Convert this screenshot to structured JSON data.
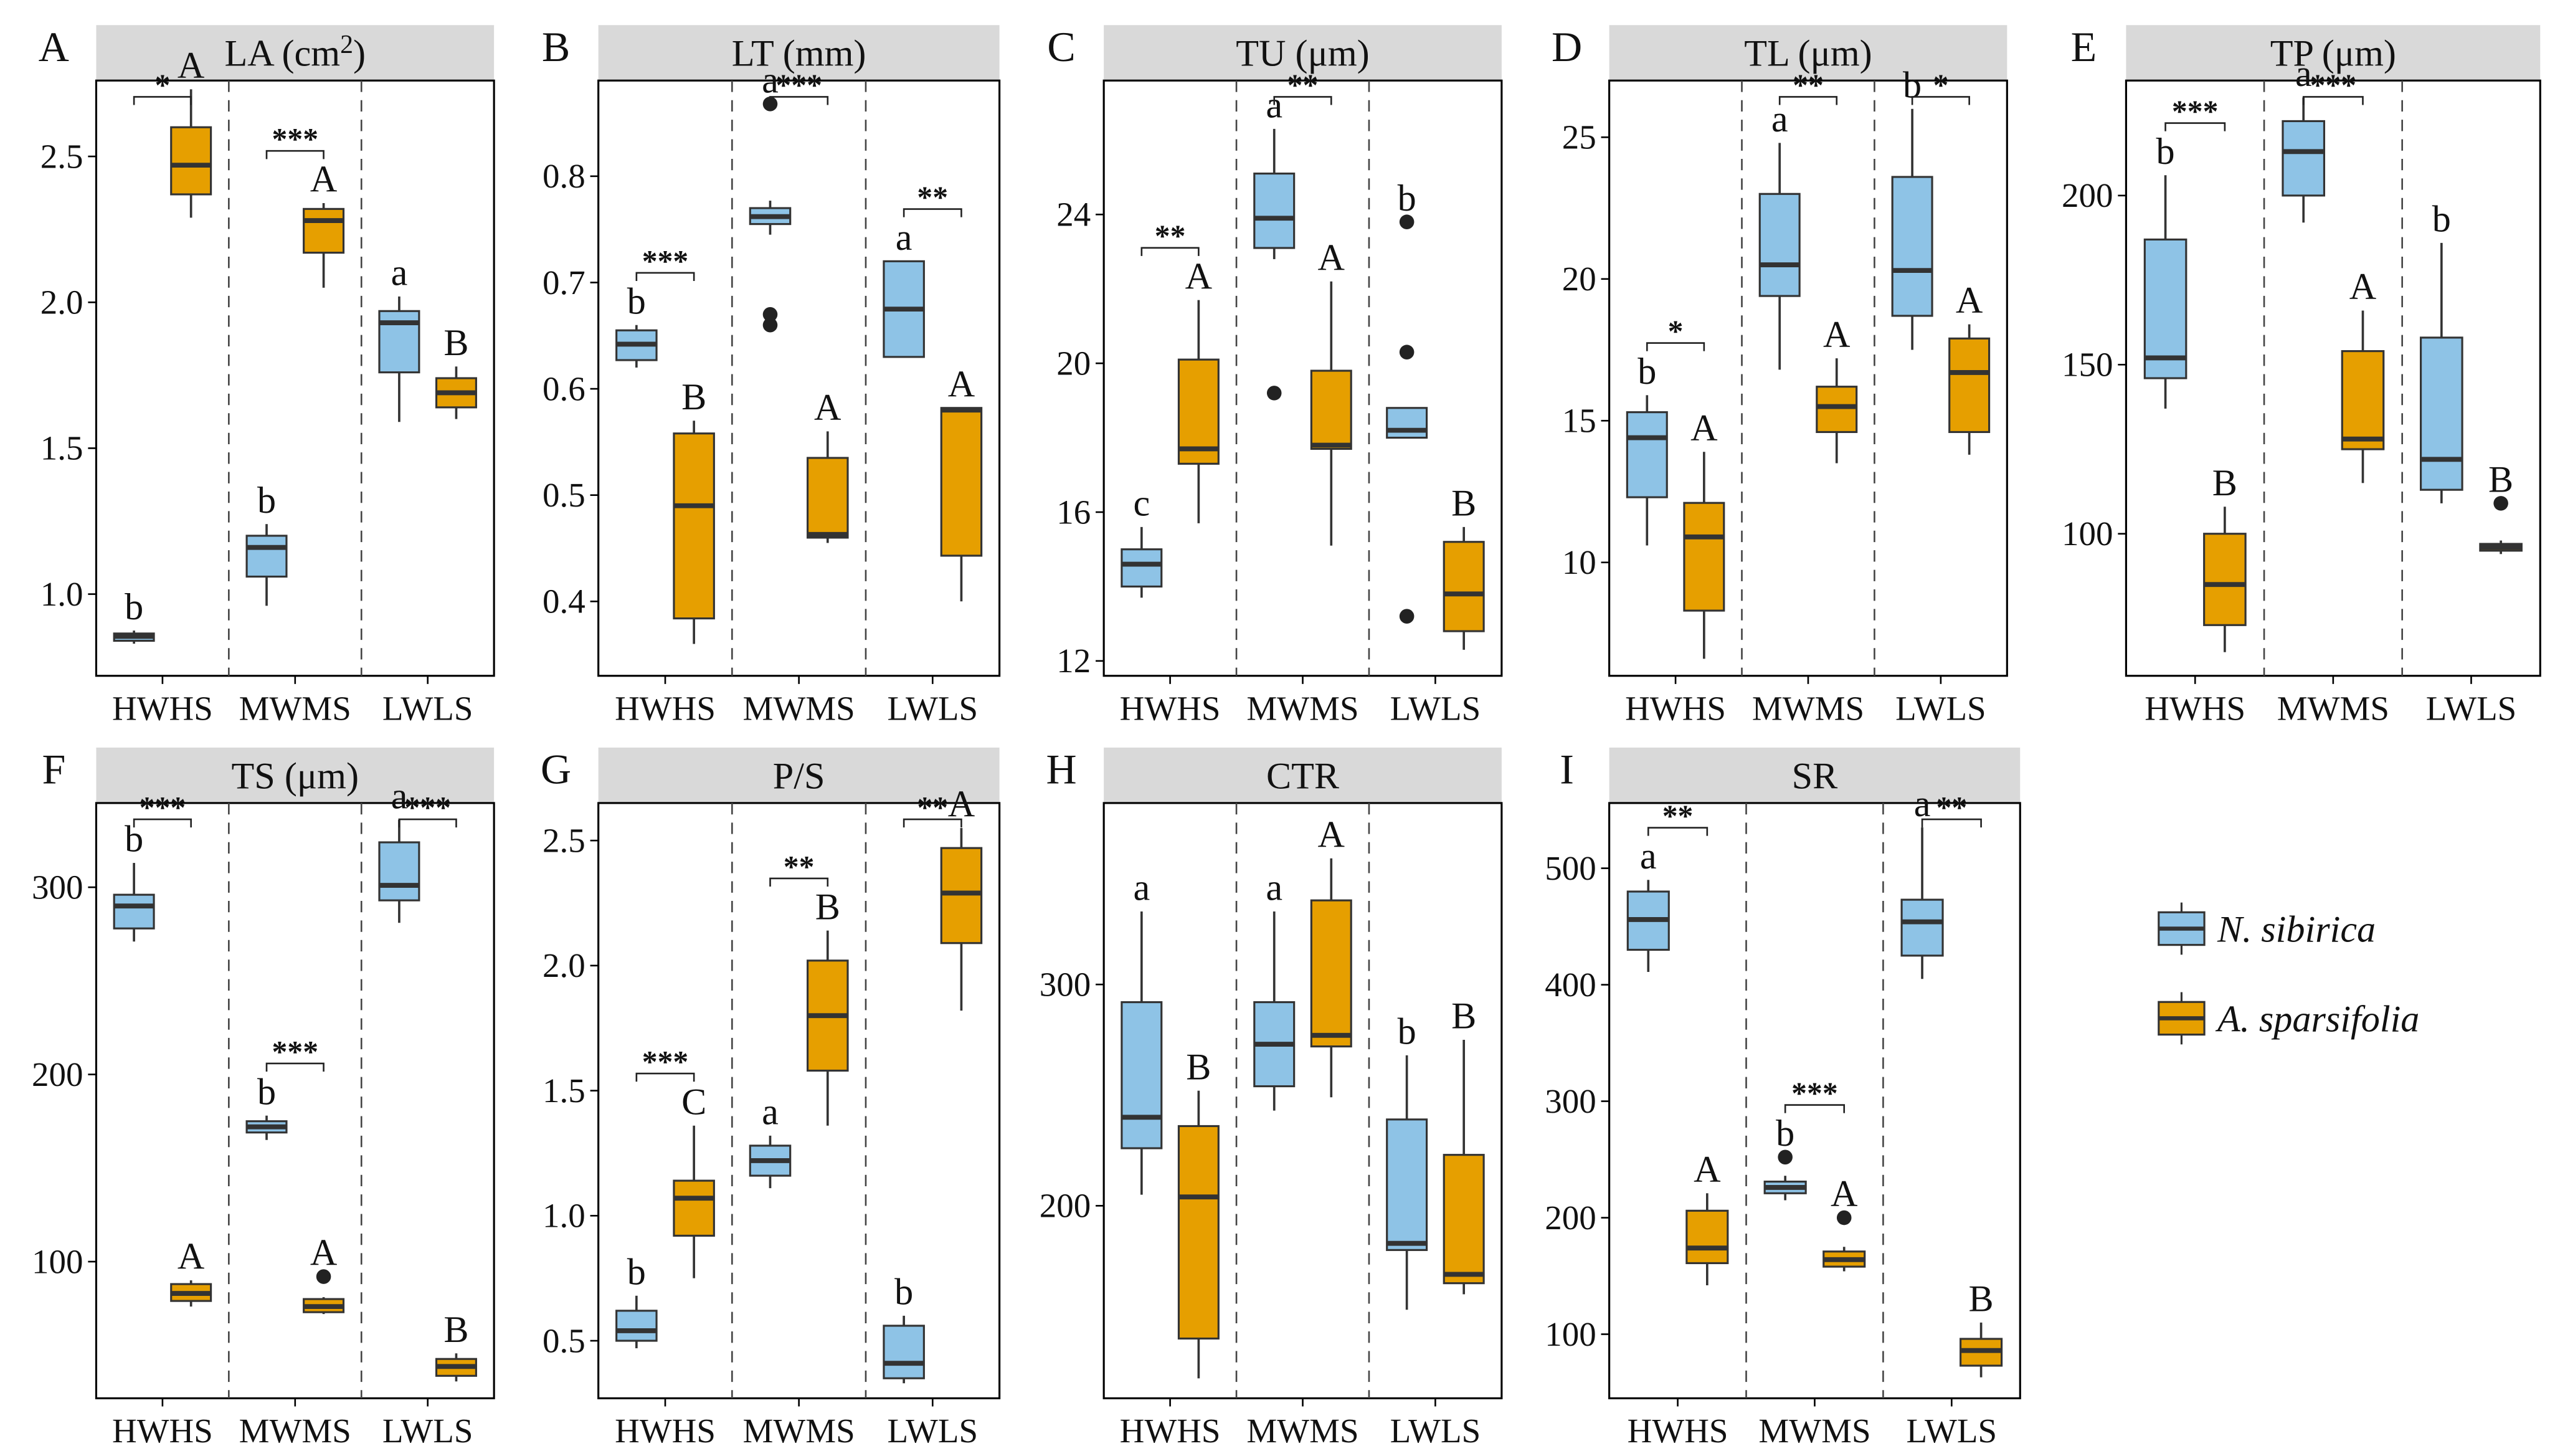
{
  "legend": [
    {
      "name": "N. sibirica",
      "color": "#8EC3E6"
    },
    {
      "name": "A. sparsifolia",
      "color": "#E69F00"
    }
  ],
  "colors": {
    "strip": "#D9D9D9",
    "box_edge": "#333333"
  },
  "chart_data": [
    {
      "type": "box",
      "panel": "A",
      "title": "LA (cm",
      "title_sup": "2",
      "title_end": ")",
      "categories": [
        "HWHS",
        "MWMS",
        "LWLS"
      ],
      "ylim": [
        0.72,
        2.76
      ],
      "yticks": [
        1.0,
        1.5,
        2.0,
        2.5
      ],
      "tick_labels": [
        "1.0",
        "1.5",
        "2.0",
        "2.5"
      ],
      "series": [
        {
          "name": "N. sibirica",
          "boxes": [
            {
              "q1": 0.84,
              "median": 0.855,
              "q3": 0.865,
              "low": 0.83,
              "high": 0.875,
              "outliers": [],
              "letter": "b"
            },
            {
              "q1": 1.06,
              "median": 1.16,
              "q3": 1.2,
              "low": 0.96,
              "high": 1.24,
              "outliers": [],
              "letter": "b"
            },
            {
              "q1": 1.76,
              "median": 1.93,
              "q3": 1.97,
              "low": 1.59,
              "high": 2.02,
              "outliers": [],
              "letter": "a"
            }
          ]
        },
        {
          "name": "A. sparsifolia",
          "boxes": [
            {
              "q1": 2.37,
              "median": 2.47,
              "q3": 2.6,
              "low": 2.29,
              "high": 2.73,
              "outliers": [],
              "letter": "A"
            },
            {
              "q1": 2.17,
              "median": 2.28,
              "q3": 2.32,
              "low": 2.05,
              "high": 2.34,
              "outliers": [],
              "letter": "A"
            },
            {
              "q1": 1.64,
              "median": 1.69,
              "q3": 1.74,
              "low": 1.6,
              "high": 1.78,
              "outliers": [],
              "letter": "B"
            }
          ]
        }
      ],
      "significance": [
        "*",
        "***",
        ""
      ]
    },
    {
      "type": "box",
      "panel": "B",
      "title": "LT (mm)",
      "categories": [
        "HWHS",
        "MWMS",
        "LWLS"
      ],
      "ylim": [
        0.33,
        0.89
      ],
      "yticks": [
        0.4,
        0.5,
        0.6,
        0.7,
        0.8
      ],
      "tick_labels": [
        "0.4",
        "0.5",
        "0.6",
        "0.7",
        "0.8"
      ],
      "series": [
        {
          "name": "N. sibirica",
          "boxes": [
            {
              "q1": 0.627,
              "median": 0.642,
              "q3": 0.655,
              "low": 0.62,
              "high": 0.66,
              "outliers": [],
              "letter": "b"
            },
            {
              "q1": 0.755,
              "median": 0.762,
              "q3": 0.77,
              "low": 0.745,
              "high": 0.777,
              "outliers": [
                0.868,
                0.67,
                0.66
              ],
              "letter": "a"
            },
            {
              "q1": 0.63,
              "median": 0.675,
              "q3": 0.72,
              "low": 0.63,
              "high": 0.72,
              "outliers": [],
              "letter": "a"
            }
          ]
        },
        {
          "name": "A. sparsifolia",
          "boxes": [
            {
              "q1": 0.384,
              "median": 0.49,
              "q3": 0.558,
              "low": 0.36,
              "high": 0.57,
              "outliers": [],
              "letter": "B"
            },
            {
              "q1": 0.46,
              "median": 0.463,
              "q3": 0.535,
              "low": 0.455,
              "high": 0.56,
              "outliers": [],
              "letter": "A"
            },
            {
              "q1": 0.443,
              "median": 0.58,
              "q3": 0.582,
              "low": 0.4,
              "high": 0.582,
              "outliers": [],
              "letter": "A"
            }
          ]
        }
      ],
      "significance": [
        "***",
        "***",
        "**"
      ]
    },
    {
      "type": "box",
      "panel": "C",
      "title": "TU (μm)",
      "categories": [
        "HWHS",
        "MWMS",
        "LWLS"
      ],
      "ylim": [
        11.6,
        27.6
      ],
      "yticks": [
        12,
        16,
        20,
        24
      ],
      "tick_labels": [
        "12",
        "16",
        "20",
        "24"
      ],
      "series": [
        {
          "name": "N. sibirica",
          "boxes": [
            {
              "q1": 14.0,
              "median": 14.6,
              "q3": 15.0,
              "low": 13.7,
              "high": 15.6,
              "outliers": [],
              "letter": "c"
            },
            {
              "q1": 23.1,
              "median": 23.9,
              "q3": 25.1,
              "low": 22.8,
              "high": 26.3,
              "outliers": [
                19.2
              ],
              "letter": "a"
            },
            {
              "q1": 18.0,
              "median": 18.2,
              "q3": 18.8,
              "low": 18.0,
              "high": 18.8,
              "outliers": [
                23.8,
                20.3,
                13.2
              ],
              "letter": "b"
            }
          ]
        },
        {
          "name": "A. sparsifolia",
          "boxes": [
            {
              "q1": 17.3,
              "median": 17.7,
              "q3": 20.1,
              "low": 15.7,
              "high": 21.7,
              "outliers": [],
              "letter": "A"
            },
            {
              "q1": 17.7,
              "median": 17.8,
              "q3": 19.8,
              "low": 15.1,
              "high": 22.2,
              "outliers": [],
              "letter": "A"
            },
            {
              "q1": 12.8,
              "median": 13.8,
              "q3": 15.2,
              "low": 12.3,
              "high": 15.6,
              "outliers": [],
              "letter": "B"
            }
          ]
        }
      ],
      "significance": [
        "**",
        "**",
        ""
      ]
    },
    {
      "type": "box",
      "panel": "D",
      "title": "TL (μm)",
      "categories": [
        "HWHS",
        "MWMS",
        "LWLS"
      ],
      "ylim": [
        6.0,
        27.0
      ],
      "yticks": [
        10,
        15,
        20,
        25
      ],
      "tick_labels": [
        "10",
        "15",
        "20",
        "25"
      ],
      "series": [
        {
          "name": "N. sibirica",
          "boxes": [
            {
              "q1": 12.3,
              "median": 14.4,
              "q3": 15.3,
              "low": 10.6,
              "high": 15.9,
              "outliers": [],
              "letter": "b"
            },
            {
              "q1": 19.4,
              "median": 20.5,
              "q3": 23.0,
              "low": 16.8,
              "high": 24.8,
              "outliers": [],
              "letter": "a"
            },
            {
              "q1": 18.7,
              "median": 20.3,
              "q3": 23.6,
              "low": 17.5,
              "high": 26.0,
              "outliers": [],
              "letter": "b"
            }
          ]
        },
        {
          "name": "A. sparsifolia",
          "boxes": [
            {
              "q1": 8.3,
              "median": 10.9,
              "q3": 12.1,
              "low": 6.6,
              "high": 13.9,
              "outliers": [],
              "letter": "A"
            },
            {
              "q1": 14.6,
              "median": 15.5,
              "q3": 16.2,
              "low": 13.5,
              "high": 17.2,
              "outliers": [],
              "letter": "A"
            },
            {
              "q1": 14.6,
              "median": 16.7,
              "q3": 17.9,
              "low": 13.8,
              "high": 18.4,
              "outliers": [],
              "letter": "A"
            }
          ]
        }
      ],
      "significance": [
        "*",
        "**",
        "*"
      ]
    },
    {
      "type": "box",
      "panel": "E",
      "title": "TP (μm)",
      "categories": [
        "HWHS",
        "MWMS",
        "LWLS"
      ],
      "ylim": [
        58,
        234
      ],
      "yticks": [
        100,
        150,
        200
      ],
      "tick_labels": [
        "100",
        "150",
        "200"
      ],
      "series": [
        {
          "name": "N. sibirica",
          "boxes": [
            {
              "q1": 146,
              "median": 152,
              "q3": 187,
              "low": 137,
              "high": 206,
              "outliers": [],
              "letter": "b"
            },
            {
              "q1": 200,
              "median": 213,
              "q3": 222,
              "low": 192,
              "high": 229,
              "outliers": [],
              "letter": "a"
            },
            {
              "q1": 113,
              "median": 122,
              "q3": 158,
              "low": 109,
              "high": 186,
              "outliers": [],
              "letter": "b"
            }
          ]
        },
        {
          "name": "A. sparsifolia",
          "boxes": [
            {
              "q1": 73,
              "median": 85,
              "q3": 100,
              "low": 65,
              "high": 108,
              "outliers": [],
              "letter": "B"
            },
            {
              "q1": 125,
              "median": 128,
              "q3": 154,
              "low": 115,
              "high": 166,
              "outliers": [],
              "letter": "A"
            },
            {
              "q1": 95,
              "median": 96,
              "q3": 97,
              "low": 94,
              "high": 98,
              "outliers": [
                109
              ],
              "letter": "B"
            }
          ]
        }
      ],
      "significance": [
        "***",
        "***",
        ""
      ]
    },
    {
      "type": "box",
      "panel": "F",
      "title": "TS (μm)",
      "categories": [
        "HWHS",
        "MWMS",
        "LWLS"
      ],
      "ylim": [
        27,
        345
      ],
      "yticks": [
        100,
        200,
        300
      ],
      "tick_labels": [
        "100",
        "200",
        "300"
      ],
      "series": [
        {
          "name": "N. sibirica",
          "boxes": [
            {
              "q1": 278,
              "median": 290,
              "q3": 296,
              "low": 271,
              "high": 313,
              "outliers": [],
              "letter": "b"
            },
            {
              "q1": 169,
              "median": 172,
              "q3": 175,
              "low": 165,
              "high": 178,
              "outliers": [],
              "letter": "b"
            },
            {
              "q1": 293,
              "median": 301,
              "q3": 324,
              "low": 281,
              "high": 336,
              "outliers": [],
              "letter": "a"
            }
          ]
        },
        {
          "name": "A. sparsifolia",
          "boxes": [
            {
              "q1": 79,
              "median": 83,
              "q3": 88,
              "low": 76,
              "high": 90,
              "outliers": [],
              "letter": "A"
            },
            {
              "q1": 73,
              "median": 76,
              "q3": 80,
              "low": 72,
              "high": 81,
              "outliers": [
                92
              ],
              "letter": "A"
            },
            {
              "q1": 39,
              "median": 44,
              "q3": 48,
              "low": 36,
              "high": 51,
              "outliers": [],
              "letter": "B"
            }
          ]
        }
      ],
      "significance": [
        "***",
        "***",
        "***"
      ]
    },
    {
      "type": "box",
      "panel": "G",
      "title": "P/S",
      "categories": [
        "HWHS",
        "MWMS",
        "LWLS"
      ],
      "ylim": [
        0.27,
        2.65
      ],
      "yticks": [
        0.5,
        1.0,
        1.5,
        2.0,
        2.5
      ],
      "tick_labels": [
        "0.5",
        "1.0",
        "1.5",
        "2.0",
        "2.5"
      ],
      "series": [
        {
          "name": "N. sibirica",
          "boxes": [
            {
              "q1": 0.5,
              "median": 0.54,
              "q3": 0.62,
              "low": 0.47,
              "high": 0.68,
              "outliers": [],
              "letter": "b"
            },
            {
              "q1": 1.16,
              "median": 1.22,
              "q3": 1.28,
              "low": 1.11,
              "high": 1.32,
              "outliers": [],
              "letter": "a"
            },
            {
              "q1": 0.35,
              "median": 0.41,
              "q3": 0.56,
              "low": 0.33,
              "high": 0.6,
              "outliers": [],
              "letter": "b"
            }
          ]
        },
        {
          "name": "A. sparsifolia",
          "boxes": [
            {
              "q1": 0.92,
              "median": 1.07,
              "q3": 1.14,
              "low": 0.75,
              "high": 1.36,
              "outliers": [],
              "letter": "C"
            },
            {
              "q1": 1.58,
              "median": 1.8,
              "q3": 2.02,
              "low": 1.36,
              "high": 2.14,
              "outliers": [],
              "letter": "B"
            },
            {
              "q1": 2.09,
              "median": 2.29,
              "q3": 2.47,
              "low": 1.82,
              "high": 2.55,
              "outliers": [],
              "letter": "A"
            }
          ]
        }
      ],
      "significance": [
        "***",
        "**",
        "**"
      ]
    },
    {
      "type": "box",
      "panel": "H",
      "title": "CTR",
      "categories": [
        "HWHS",
        "MWMS",
        "LWLS"
      ],
      "ylim": [
        113,
        382
      ],
      "yticks": [
        200,
        300
      ],
      "tick_labels": [
        "200",
        "300"
      ],
      "series": [
        {
          "name": "N. sibirica",
          "boxes": [
            {
              "q1": 226,
              "median": 240,
              "q3": 292,
              "low": 205,
              "high": 333,
              "outliers": [],
              "letter": "a"
            },
            {
              "q1": 254,
              "median": 273,
              "q3": 292,
              "low": 243,
              "high": 333,
              "outliers": [],
              "letter": "a"
            },
            {
              "q1": 180,
              "median": 183,
              "q3": 239,
              "low": 153,
              "high": 268,
              "outliers": [],
              "letter": "b"
            }
          ]
        },
        {
          "name": "A. sparsifolia",
          "boxes": [
            {
              "q1": 140,
              "median": 204,
              "q3": 236,
              "low": 122,
              "high": 252,
              "outliers": [],
              "letter": "B"
            },
            {
              "q1": 272,
              "median": 277,
              "q3": 338,
              "low": 249,
              "high": 357,
              "outliers": [],
              "letter": "A"
            },
            {
              "q1": 165,
              "median": 169,
              "q3": 223,
              "low": 160,
              "high": 275,
              "outliers": [],
              "letter": "B"
            }
          ]
        }
      ],
      "significance": [
        "",
        "",
        ""
      ]
    },
    {
      "type": "box",
      "panel": "I",
      "title": "SR",
      "categories": [
        "HWHS",
        "MWMS",
        "LWLS"
      ],
      "ylim": [
        45,
        556
      ],
      "yticks": [
        100,
        200,
        300,
        400,
        500
      ],
      "tick_labels": [
        "100",
        "200",
        "300",
        "400",
        "500"
      ],
      "series": [
        {
          "name": "N. sibirica",
          "boxes": [
            {
              "q1": 430,
              "median": 456,
              "q3": 480,
              "low": 411,
              "high": 490,
              "outliers": [],
              "letter": "a"
            },
            {
              "q1": 221,
              "median": 226,
              "q3": 231,
              "low": 215,
              "high": 236,
              "outliers": [
                252
              ],
              "letter": "b"
            },
            {
              "q1": 425,
              "median": 454,
              "q3": 473,
              "low": 405,
              "high": 535,
              "outliers": [],
              "letter": "a"
            }
          ]
        },
        {
          "name": "A. sparsifolia",
          "boxes": [
            {
              "q1": 161,
              "median": 174,
              "q3": 206,
              "low": 142,
              "high": 221,
              "outliers": [],
              "letter": "A"
            },
            {
              "q1": 158,
              "median": 164,
              "q3": 171,
              "low": 154,
              "high": 175,
              "outliers": [
                200
              ],
              "letter": "A"
            },
            {
              "q1": 73,
              "median": 86,
              "q3": 96,
              "low": 63,
              "high": 110,
              "outliers": [],
              "letter": "B"
            }
          ]
        }
      ],
      "significance": [
        "**",
        "***",
        "**"
      ]
    }
  ]
}
